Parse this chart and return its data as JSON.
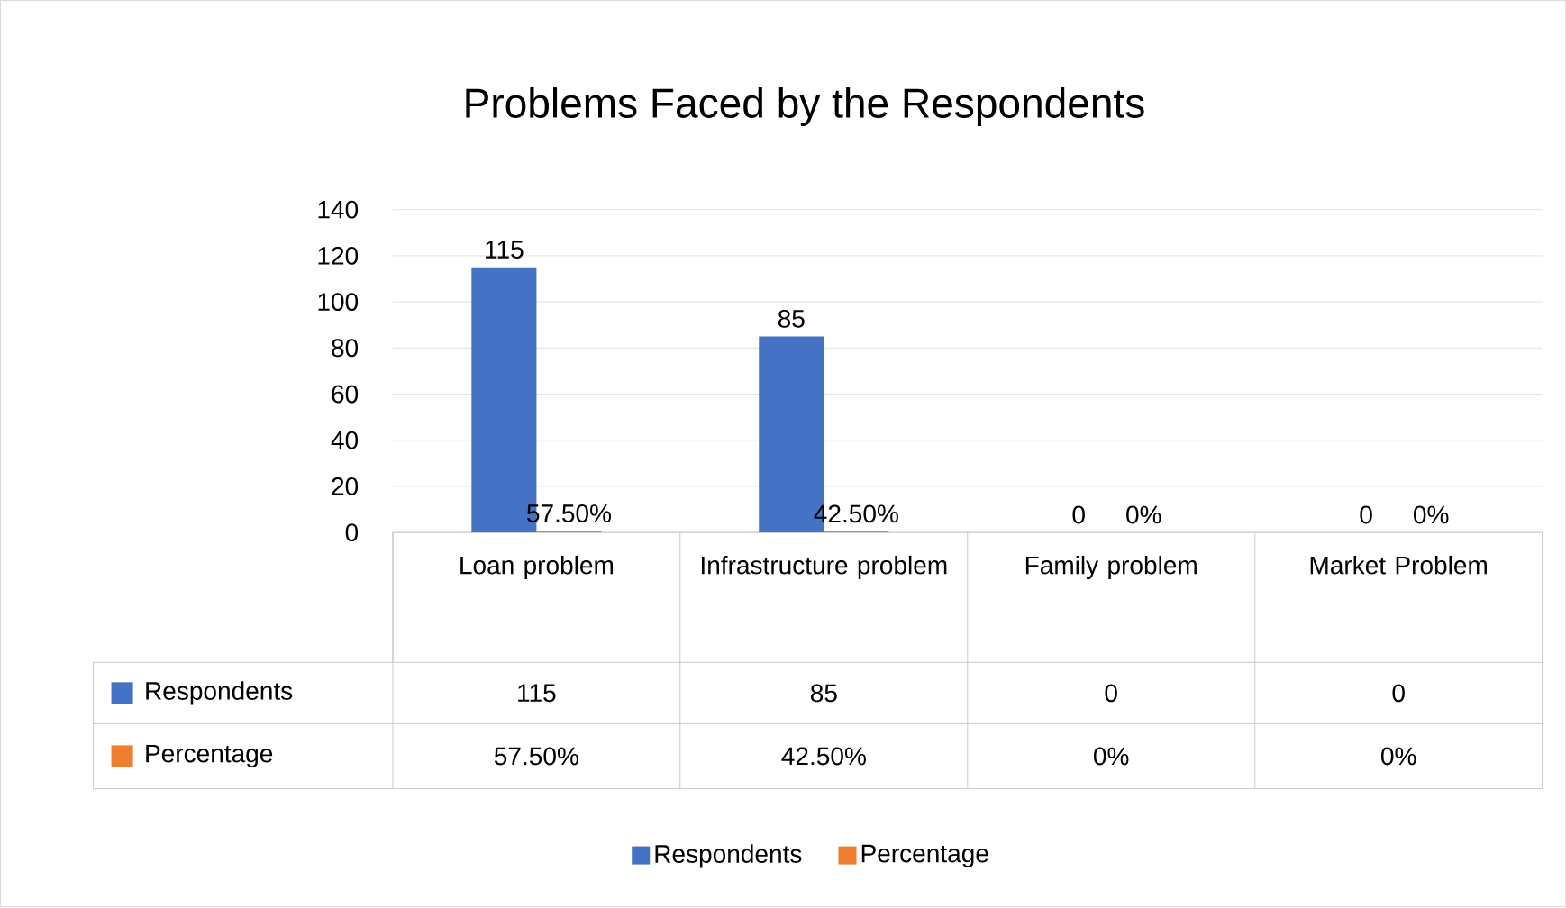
{
  "chart_data": {
    "type": "bar",
    "title": "Problems Faced by the Respondents",
    "categories": [
      "Loan problem",
      "Infrastructure problem",
      "Family problem",
      "Market Problem"
    ],
    "series": [
      {
        "name": "Respondents",
        "color": "#4472c4",
        "values": [
          115,
          85,
          0,
          0
        ],
        "value_labels": [
          "115",
          "85",
          "0",
          "0"
        ]
      },
      {
        "name": "Percentage",
        "color": "#ed7d31",
        "values": [
          0.575,
          0.425,
          0,
          0
        ],
        "value_labels": [
          "57.50%",
          "42.50%",
          "0%",
          "0%"
        ]
      }
    ],
    "ylim": [
      0,
      140
    ],
    "yticks": [
      0,
      20,
      40,
      60,
      80,
      100,
      120,
      140
    ],
    "grid": "y",
    "legend": "bottom"
  }
}
